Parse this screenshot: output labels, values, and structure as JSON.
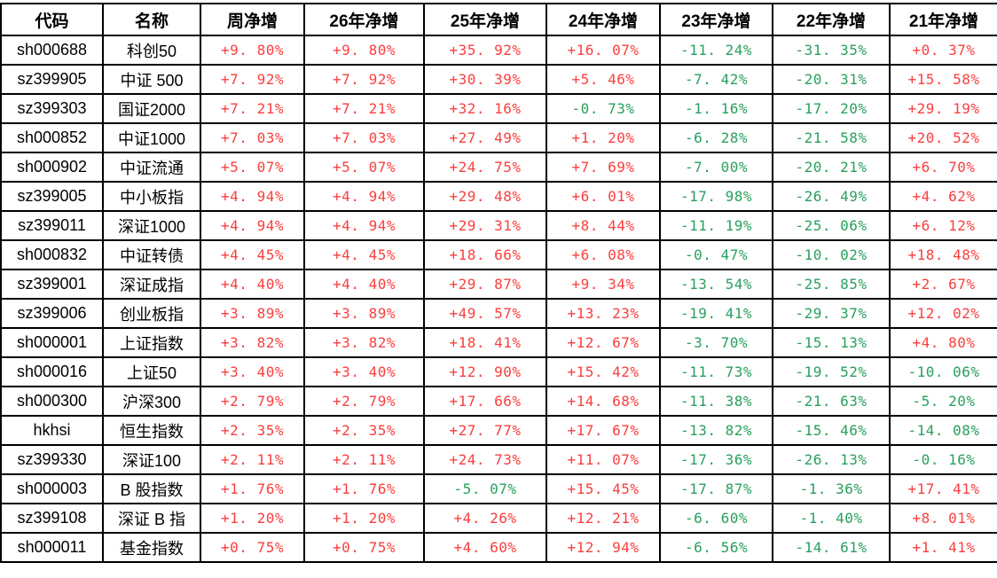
{
  "colors": {
    "positive": "#fa3e3e",
    "negative": "#28a05c",
    "grid": "#000000",
    "header_text": "#000000",
    "background": "#ffffff"
  },
  "table": {
    "columns": [
      "代码",
      "名称",
      "周净增",
      "26年净增",
      "25年净增",
      "24年净增",
      "23年净增",
      "22年净增",
      "21年净增"
    ],
    "rows": [
      {
        "code": "sh000688",
        "name": "科创50",
        "values": [
          "+9.80%",
          "+9.80%",
          "+35.92%",
          "+16.07%",
          "-11.24%",
          "-31.35%",
          "+0.37%"
        ]
      },
      {
        "code": "sz399905",
        "name": "中证 500",
        "values": [
          "+7.92%",
          "+7.92%",
          "+30.39%",
          "+5.46%",
          "-7.42%",
          "-20.31%",
          "+15.58%"
        ]
      },
      {
        "code": "sz399303",
        "name": "国证2000",
        "values": [
          "+7.21%",
          "+7.21%",
          "+32.16%",
          "-0.73%",
          "-1.16%",
          "-17.20%",
          "+29.19%"
        ]
      },
      {
        "code": "sh000852",
        "name": "中证1000",
        "values": [
          "+7.03%",
          "+7.03%",
          "+27.49%",
          "+1.20%",
          "-6.28%",
          "-21.58%",
          "+20.52%"
        ]
      },
      {
        "code": "sh000902",
        "name": "中证流通",
        "values": [
          "+5.07%",
          "+5.07%",
          "+24.75%",
          "+7.69%",
          "-7.00%",
          "-20.21%",
          "+6.70%"
        ]
      },
      {
        "code": "sz399005",
        "name": "中小板指",
        "values": [
          "+4.94%",
          "+4.94%",
          "+29.48%",
          "+6.01%",
          "-17.98%",
          "-26.49%",
          "+4.62%"
        ]
      },
      {
        "code": "sz399011",
        "name": "深证1000",
        "values": [
          "+4.94%",
          "+4.94%",
          "+29.31%",
          "+8.44%",
          "-11.19%",
          "-25.06%",
          "+6.12%"
        ]
      },
      {
        "code": "sh000832",
        "name": "中证转债",
        "values": [
          "+4.45%",
          "+4.45%",
          "+18.66%",
          "+6.08%",
          "-0.47%",
          "-10.02%",
          "+18.48%"
        ]
      },
      {
        "code": "sz399001",
        "name": "深证成指",
        "values": [
          "+4.40%",
          "+4.40%",
          "+29.87%",
          "+9.34%",
          "-13.54%",
          "-25.85%",
          "+2.67%"
        ]
      },
      {
        "code": "sz399006",
        "name": "创业板指",
        "values": [
          "+3.89%",
          "+3.89%",
          "+49.57%",
          "+13.23%",
          "-19.41%",
          "-29.37%",
          "+12.02%"
        ]
      },
      {
        "code": "sh000001",
        "name": "上证指数",
        "values": [
          "+3.82%",
          "+3.82%",
          "+18.41%",
          "+12.67%",
          "-3.70%",
          "-15.13%",
          "+4.80%"
        ]
      },
      {
        "code": "sh000016",
        "name": "上证50",
        "values": [
          "+3.40%",
          "+3.40%",
          "+12.90%",
          "+15.42%",
          "-11.73%",
          "-19.52%",
          "-10.06%"
        ]
      },
      {
        "code": "sh000300",
        "name": "沪深300",
        "values": [
          "+2.79%",
          "+2.79%",
          "+17.66%",
          "+14.68%",
          "-11.38%",
          "-21.63%",
          "-5.20%"
        ]
      },
      {
        "code": "hkhsi",
        "name": "恒生指数",
        "values": [
          "+2.35%",
          "+2.35%",
          "+27.77%",
          "+17.67%",
          "-13.82%",
          "-15.46%",
          "-14.08%"
        ]
      },
      {
        "code": "sz399330",
        "name": "深证100",
        "values": [
          "+2.11%",
          "+2.11%",
          "+24.73%",
          "+11.07%",
          "-17.36%",
          "-26.13%",
          "-0.16%"
        ]
      },
      {
        "code": "sh000003",
        "name": "B 股指数",
        "values": [
          "+1.76%",
          "+1.76%",
          "-5.07%",
          "+15.45%",
          "-17.87%",
          "-1.36%",
          "+17.41%"
        ]
      },
      {
        "code": "sz399108",
        "name": "深证 B 指",
        "values": [
          "+1.20%",
          "+1.20%",
          "+4.26%",
          "+12.21%",
          "-6.60%",
          "-1.40%",
          "+8.01%"
        ]
      },
      {
        "code": "sh000011",
        "name": "基金指数",
        "values": [
          "+0.75%",
          "+0.75%",
          "+4.60%",
          "+12.94%",
          "-6.56%",
          "-14.61%",
          "+1.41%"
        ]
      }
    ]
  }
}
